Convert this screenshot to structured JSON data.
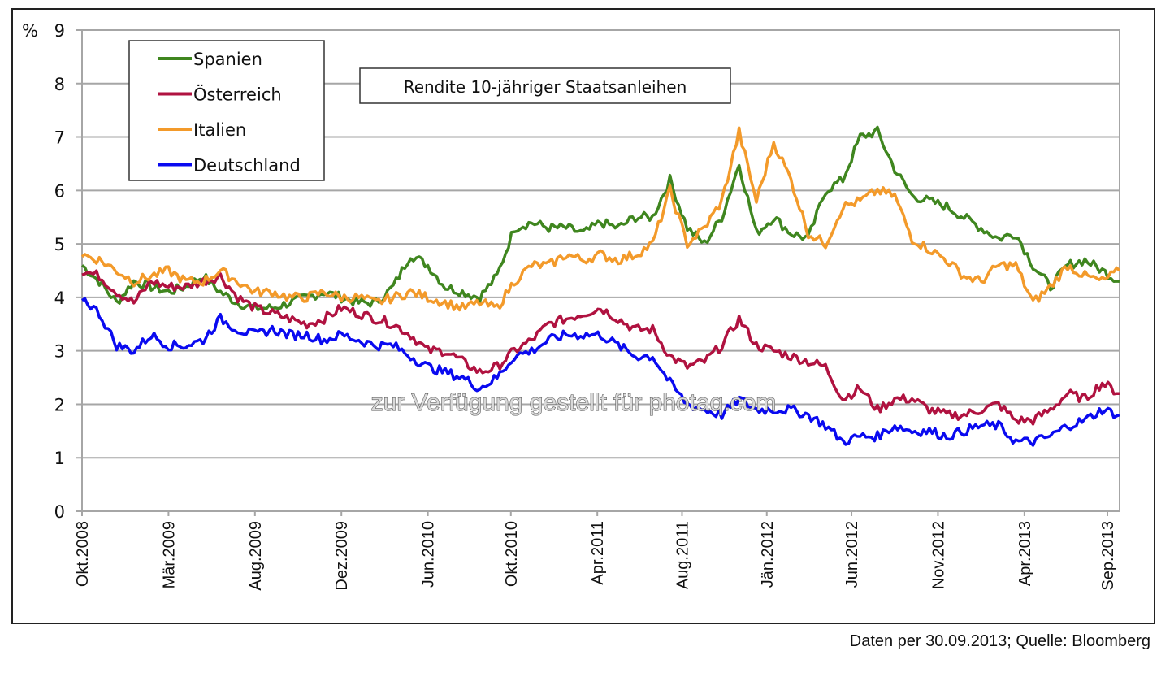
{
  "chart_data": {
    "type": "line",
    "title": "Rendite 10-jähriger Staatsanleihen",
    "ylabel": "%",
    "xlabel": "",
    "ylim": [
      0,
      9
    ],
    "yticks": [
      "0",
      "1",
      "2",
      "3",
      "4",
      "5",
      "6",
      "7",
      "8",
      "9"
    ],
    "xlim_months": [
      0,
      60
    ],
    "x_ticks": [
      {
        "label": "Okt.2008",
        "month": 0
      },
      {
        "label": "Mär.2009",
        "month": 5
      },
      {
        "label": "Aug.2009",
        "month": 10
      },
      {
        "label": "Dez.2009",
        "month": 15
      },
      {
        "label": "Jun.2010",
        "month": 20
      },
      {
        "label": "Okt.2010",
        "month": 24.8
      },
      {
        "label": "Apr.2011",
        "month": 29.8
      },
      {
        "label": "Aug.2011",
        "month": 34.7
      },
      {
        "label": "Jän.2012",
        "month": 39.6
      },
      {
        "label": "Jun.2012",
        "month": 44.5
      },
      {
        "label": "Nov.2012",
        "month": 49.5
      },
      {
        "label": "Apr.2013",
        "month": 54.5
      },
      {
        "label": "Sep.2013",
        "month": 59.3
      }
    ],
    "grid": true,
    "legend_position": "top-left",
    "x_months": [
      0,
      1,
      2,
      3,
      4,
      5,
      6,
      7,
      8,
      9,
      10,
      11,
      12,
      13,
      14,
      15,
      16,
      17,
      18,
      19,
      20,
      21,
      22,
      23,
      24,
      25,
      26,
      27,
      28,
      29,
      30,
      31,
      32,
      33,
      34,
      35,
      36,
      37,
      38,
      39,
      40,
      41,
      42,
      43,
      44,
      45,
      46,
      47,
      48,
      49,
      50,
      51,
      52,
      53,
      54,
      55,
      56,
      57,
      58,
      59,
      60
    ],
    "series": [
      {
        "name": "Spanien",
        "color": "#3f861f",
        "values": [
          4.6,
          4.3,
          3.9,
          4.3,
          4.2,
          4.1,
          4.2,
          4.4,
          4.1,
          3.9,
          3.8,
          3.8,
          3.9,
          4.0,
          4.1,
          4.0,
          3.9,
          3.9,
          4.2,
          4.8,
          4.6,
          4.2,
          4.1,
          4.0,
          4.4,
          5.3,
          5.4,
          5.3,
          5.3,
          5.2,
          5.4,
          5.3,
          5.5,
          5.5,
          6.2,
          5.3,
          5.0,
          5.5,
          6.5,
          5.2,
          5.5,
          5.2,
          5.1,
          6.0,
          6.2,
          7.0,
          7.1,
          6.4,
          5.9,
          5.8,
          5.7,
          5.5,
          5.3,
          5.1,
          5.2,
          4.6,
          4.2,
          4.6,
          4.7,
          4.5,
          4.3
        ]
      },
      {
        "name": "Österreich",
        "color": "#b01240",
        "values": [
          4.5,
          4.4,
          4.1,
          3.9,
          4.3,
          4.2,
          4.2,
          4.3,
          4.4,
          4.0,
          3.8,
          3.7,
          3.6,
          3.5,
          3.6,
          3.8,
          3.7,
          3.6,
          3.5,
          3.3,
          3.0,
          3.0,
          2.8,
          2.6,
          2.7,
          3.0,
          3.2,
          3.5,
          3.6,
          3.7,
          3.8,
          3.6,
          3.4,
          3.4,
          2.9,
          2.7,
          2.8,
          3.1,
          3.6,
          3.1,
          3.0,
          2.9,
          2.8,
          2.7,
          2.1,
          2.3,
          1.9,
          2.1,
          2.1,
          1.9,
          1.8,
          1.8,
          1.9,
          2.0,
          1.7,
          1.7,
          1.9,
          2.2,
          2.1,
          2.4,
          2.2
        ]
      },
      {
        "name": "Italien",
        "color": "#f39a2a",
        "values": [
          4.8,
          4.7,
          4.5,
          4.3,
          4.4,
          4.5,
          4.3,
          4.3,
          4.5,
          4.3,
          4.1,
          4.1,
          4.0,
          4.0,
          4.1,
          4.0,
          4.0,
          3.9,
          4.0,
          4.1,
          4.0,
          3.9,
          3.8,
          3.9,
          3.8,
          4.3,
          4.6,
          4.6,
          4.8,
          4.7,
          4.8,
          4.7,
          4.8,
          5.0,
          6.0,
          5.0,
          5.3,
          5.8,
          7.1,
          5.8,
          6.9,
          6.2,
          5.2,
          5.0,
          5.7,
          5.8,
          6.0,
          5.9,
          5.1,
          4.9,
          4.7,
          4.4,
          4.3,
          4.6,
          4.6,
          3.9,
          4.2,
          4.6,
          4.4,
          4.3,
          4.5
        ]
      },
      {
        "name": "Deutschland",
        "color": "#0a0af0",
        "values": [
          4.0,
          3.7,
          3.1,
          3.0,
          3.3,
          3.1,
          3.1,
          3.2,
          3.6,
          3.4,
          3.3,
          3.4,
          3.3,
          3.3,
          3.2,
          3.3,
          3.2,
          3.1,
          3.1,
          2.9,
          2.7,
          2.6,
          2.5,
          2.3,
          2.5,
          2.9,
          3.0,
          3.2,
          3.3,
          3.3,
          3.3,
          3.1,
          2.9,
          2.9,
          2.4,
          2.0,
          1.9,
          1.8,
          2.1,
          1.9,
          1.9,
          1.9,
          1.8,
          1.6,
          1.3,
          1.4,
          1.4,
          1.6,
          1.5,
          1.5,
          1.4,
          1.5,
          1.6,
          1.6,
          1.3,
          1.3,
          1.4,
          1.6,
          1.7,
          1.9,
          1.8
        ]
      }
    ]
  },
  "watermark": "zur Verfügung gestellt für photaq.com",
  "source_note": "Daten per 30.09.2013; Quelle: Bloomberg"
}
